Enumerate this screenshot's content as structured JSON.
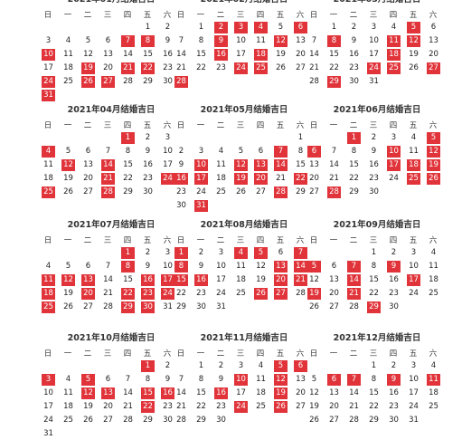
{
  "colors": {
    "highlight": "#e0343a",
    "text": "#222222"
  },
  "weekdays": [
    "日",
    "一",
    "二",
    "三",
    "四",
    "五",
    "六"
  ],
  "months": [
    {
      "title": "2021年01月结婚吉日",
      "start": 5,
      "days": 31,
      "lucky": [
        7,
        8,
        10,
        19,
        21,
        22,
        24,
        26,
        27,
        31
      ]
    },
    {
      "title": "2021年02月结婚吉日",
      "start": 1,
      "days": 28,
      "lucky": [
        2,
        3,
        4,
        6,
        9,
        12,
        16,
        18,
        24,
        25,
        28
      ]
    },
    {
      "title": "2021年03月结婚吉日",
      "start": 1,
      "days": 31,
      "lucky": [
        5,
        8,
        11,
        12,
        18,
        24,
        25,
        27,
        29
      ]
    },
    {
      "title": "2021年04月结婚吉日",
      "start": 4,
      "days": 30,
      "lucky": [
        1,
        4,
        12,
        14,
        21,
        24,
        25,
        28
      ]
    },
    {
      "title": "2021年05月结婚吉日",
      "start": 6,
      "days": 31,
      "lucky": [
        7,
        10,
        12,
        13,
        14,
        16,
        17,
        19,
        20,
        22,
        28,
        31
      ]
    },
    {
      "title": "2021年06月结婚吉日",
      "start": 2,
      "days": 30,
      "lucky": [
        1,
        5,
        6,
        10,
        12,
        17,
        18,
        19,
        25,
        26,
        28
      ]
    },
    {
      "title": "2021年07月结婚吉日",
      "start": 4,
      "days": 31,
      "lucky": [
        1,
        8,
        11,
        12,
        13,
        16,
        17,
        18,
        20,
        22,
        23,
        24,
        25,
        29,
        30
      ]
    },
    {
      "title": "2021年08月结婚吉日",
      "start": 0,
      "days": 31,
      "lucky": [
        1,
        4,
        5,
        7,
        8,
        13,
        14,
        15,
        16,
        20,
        21,
        26,
        27
      ]
    },
    {
      "title": "2021年09月结婚吉日",
      "start": 3,
      "days": 30,
      "lucky": [
        5,
        7,
        9,
        14,
        17,
        19,
        21,
        29
      ]
    },
    {
      "title": "2021年10月结婚吉日",
      "start": 5,
      "days": 31,
      "lucky": [
        1,
        3,
        5,
        12,
        13,
        15,
        16,
        22
      ]
    },
    {
      "title": "2021年11月结婚吉日",
      "start": 1,
      "days": 30,
      "lucky": [
        5,
        6,
        10,
        12,
        16,
        19,
        24,
        26
      ]
    },
    {
      "title": "2021年12月结婚吉日",
      "start": 3,
      "days": 31,
      "lucky": [
        6,
        7,
        9,
        11
      ]
    }
  ]
}
